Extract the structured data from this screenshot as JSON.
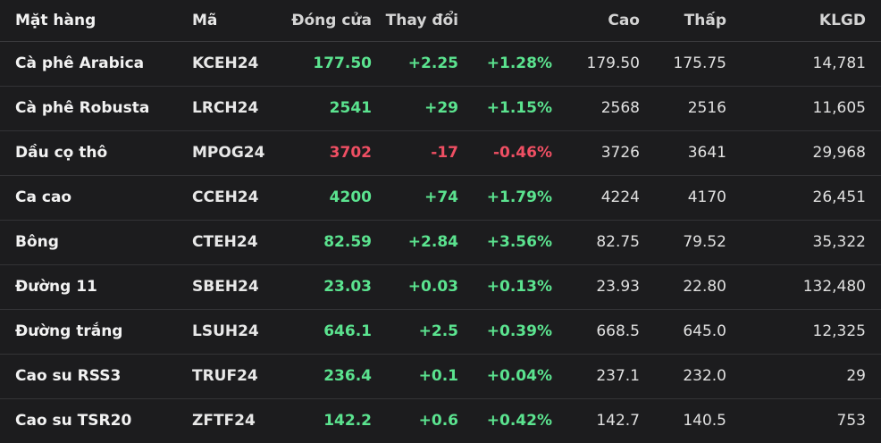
{
  "colors": {
    "background": "#1c1c1e",
    "up": "#5be38f",
    "down": "#ef4f63",
    "text": "#e6e6e6"
  },
  "headers": {
    "name": "Mặt hàng",
    "code": "Mã",
    "close": "Đóng cửa",
    "change": "Thay đổi",
    "high": "Cao",
    "low": "Thấp",
    "volume": "KLGD"
  },
  "rows": [
    {
      "name": "Cà phê Arabica",
      "code": "KCEH24",
      "close": "177.50",
      "change": "+2.25",
      "pct": "+1.28%",
      "high": "179.50",
      "low": "175.75",
      "volume": "14,781",
      "direction": "up"
    },
    {
      "name": "Cà phê Robusta",
      "code": "LRCH24",
      "close": "2541",
      "change": "+29",
      "pct": "+1.15%",
      "high": "2568",
      "low": "2516",
      "volume": "11,605",
      "direction": "up"
    },
    {
      "name": "Dầu cọ thô",
      "code": "MPOG24",
      "close": "3702",
      "change": "-17",
      "pct": "-0.46%",
      "high": "3726",
      "low": "3641",
      "volume": "29,968",
      "direction": "down"
    },
    {
      "name": "Ca cao",
      "code": "CCEH24",
      "close": "4200",
      "change": "+74",
      "pct": "+1.79%",
      "high": "4224",
      "low": "4170",
      "volume": "26,451",
      "direction": "up"
    },
    {
      "name": "Bông",
      "code": "CTEH24",
      "close": "82.59",
      "change": "+2.84",
      "pct": "+3.56%",
      "high": "82.75",
      "low": "79.52",
      "volume": "35,322",
      "direction": "up"
    },
    {
      "name": "Đường 11",
      "code": "SBEH24",
      "close": "23.03",
      "change": "+0.03",
      "pct": "+0.13%",
      "high": "23.93",
      "low": "22.80",
      "volume": "132,480",
      "direction": "up"
    },
    {
      "name": "Đường trắng",
      "code": "LSUH24",
      "close": "646.1",
      "change": "+2.5",
      "pct": "+0.39%",
      "high": "668.5",
      "low": "645.0",
      "volume": "12,325",
      "direction": "up"
    },
    {
      "name": "Cao su RSS3",
      "code": "TRUF24",
      "close": "236.4",
      "change": "+0.1",
      "pct": "+0.04%",
      "high": "237.1",
      "low": "232.0",
      "volume": "29",
      "direction": "up"
    },
    {
      "name": "Cao su TSR20",
      "code": "ZFTF24",
      "close": "142.2",
      "change": "+0.6",
      "pct": "+0.42%",
      "high": "142.7",
      "low": "140.5",
      "volume": "753",
      "direction": "up"
    }
  ]
}
